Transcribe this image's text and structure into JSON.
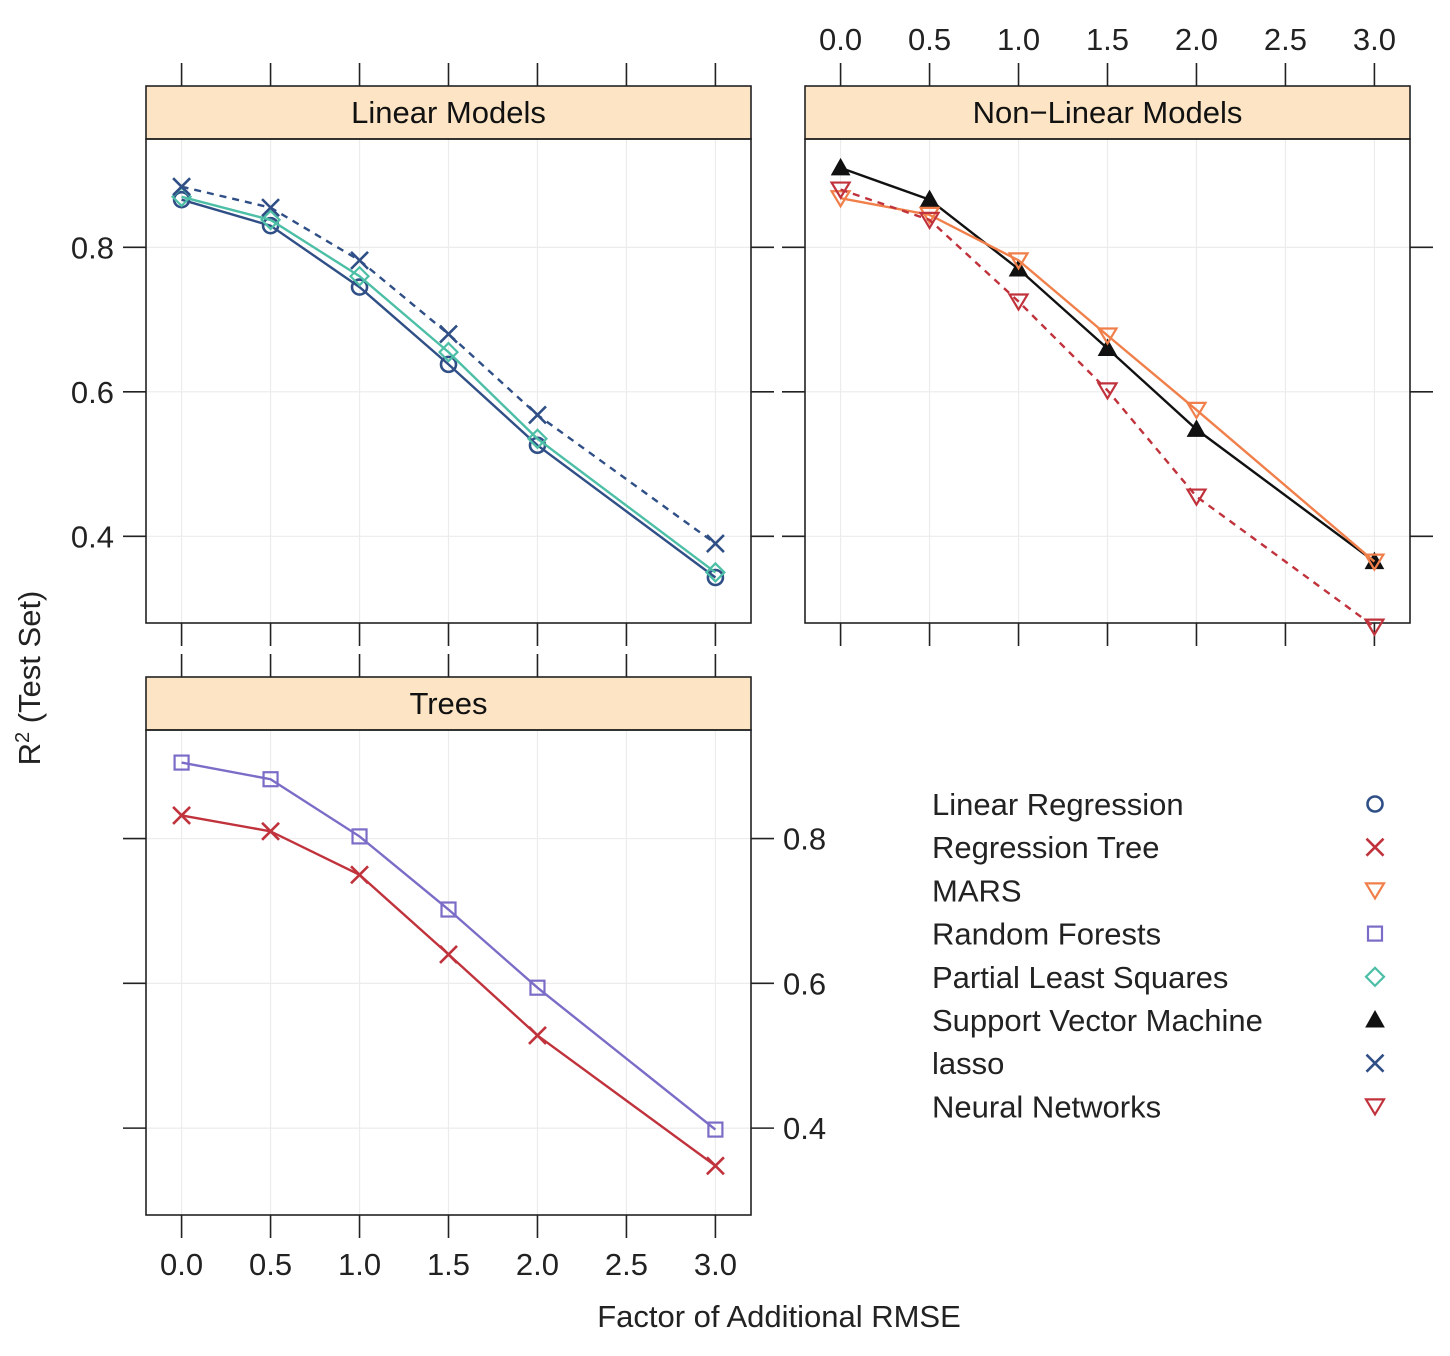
{
  "chart_data": {
    "type": "line",
    "x": [
      0.0,
      0.5,
      1.0,
      1.5,
      2.0,
      3.0
    ],
    "xlim": [
      -0.2,
      3.2
    ],
    "ylim": [
      0.28,
      0.95
    ],
    "x_ticks": [
      "0.0",
      "0.5",
      "1.0",
      "1.5",
      "2.0",
      "2.5",
      "3.0"
    ],
    "x_tick_values": [
      0.0,
      0.5,
      1.0,
      1.5,
      2.0,
      2.5,
      3.0
    ],
    "y_ticks": [
      "0.4",
      "0.6",
      "0.8"
    ],
    "y_tick_values": [
      0.4,
      0.6,
      0.8
    ],
    "xlabel": "Factor of Additional RMSE",
    "ylabel_main": "R",
    "ylabel_sup": "2",
    "ylabel_rest": " (Test Set)",
    "strip_color": "#fce4c4",
    "grid": true,
    "legend_position": "bottom-right",
    "legend": [
      {
        "name": "Linear Regression",
        "color": "#2f4f86",
        "symbol": "circle"
      },
      {
        "name": "Regression Tree",
        "color": "#c0323c",
        "symbol": "cross"
      },
      {
        "name": "MARS",
        "color": "#f07f4a",
        "symbol": "triangle-down"
      },
      {
        "name": "Random Forests",
        "color": "#7b6cc7",
        "symbol": "square"
      },
      {
        "name": "Partial Least Squares",
        "color": "#4dbfa6",
        "symbol": "diamond"
      },
      {
        "name": "Support Vector Machine",
        "color": "#111111",
        "symbol": "triangle-filled"
      },
      {
        "name": "lasso",
        "color": "#2f4f86",
        "symbol": "cross"
      },
      {
        "name": "Neural Networks",
        "color": "#c0323c",
        "symbol": "triangle-down"
      }
    ],
    "panels": [
      {
        "title": "Linear Models",
        "series": [
          {
            "name": "Linear Regression",
            "color": "#2f4f86",
            "symbol": "circle",
            "dash": false,
            "values": [
              0.866,
              0.83,
              0.745,
              0.638,
              0.526,
              0.343
            ]
          },
          {
            "name": "Partial Least Squares",
            "color": "#4dbfa6",
            "symbol": "diamond",
            "dash": false,
            "values": [
              0.87,
              0.838,
              0.76,
              0.655,
              0.535,
              0.35
            ]
          },
          {
            "name": "lasso",
            "color": "#2f4f86",
            "symbol": "cross",
            "dash": true,
            "values": [
              0.884,
              0.855,
              0.782,
              0.68,
              0.568,
              0.39
            ]
          }
        ]
      },
      {
        "title": "Non−Linear Models",
        "series": [
          {
            "name": "Support Vector Machine",
            "color": "#111111",
            "symbol": "triangle-filled",
            "dash": false,
            "values": [
              0.91,
              0.866,
              0.77,
              0.66,
              0.548,
              0.365
            ]
          },
          {
            "name": "MARS",
            "color": "#f07f4a",
            "symbol": "triangle-down",
            "dash": false,
            "values": [
              0.868,
              0.845,
              0.782,
              0.678,
              0.575,
              0.365
            ]
          },
          {
            "name": "Neural Networks",
            "color": "#c0323c",
            "symbol": "triangle-down",
            "dash": true,
            "values": [
              0.88,
              0.838,
              0.725,
              0.602,
              0.455,
              0.275
            ]
          }
        ]
      },
      {
        "title": "Trees",
        "series": [
          {
            "name": "Random Forests",
            "color": "#7b6cc7",
            "symbol": "square",
            "dash": false,
            "values": [
              0.905,
              0.882,
              0.803,
              0.702,
              0.594,
              0.398
            ]
          },
          {
            "name": "Regression Tree",
            "color": "#c0323c",
            "symbol": "cross",
            "dash": false,
            "values": [
              0.832,
              0.81,
              0.75,
              0.64,
              0.528,
              0.348
            ]
          }
        ]
      }
    ]
  }
}
